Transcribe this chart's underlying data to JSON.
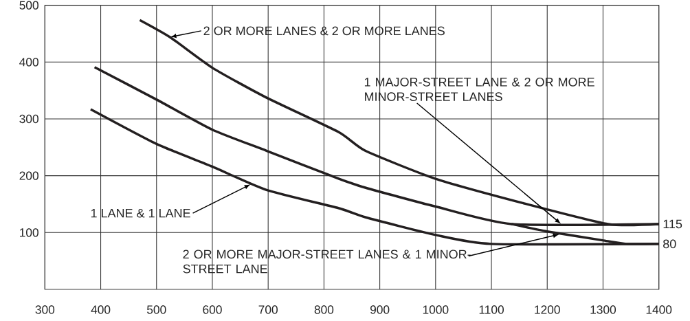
{
  "chart_data": {
    "type": "line",
    "xlim": [
      300,
      1400
    ],
    "ylim": [
      0,
      500
    ],
    "xticks": [
      300,
      400,
      500,
      600,
      700,
      800,
      900,
      1000,
      1100,
      1200,
      1300,
      1400
    ],
    "yticks": [
      100,
      200,
      300,
      400,
      500
    ],
    "grid": true,
    "marker": "none",
    "line_style": "solid",
    "series": [
      {
        "color": "#231f20",
        "x": [
          470,
          524,
          600,
          696,
          826,
          874,
          999,
          1156,
          1309,
          1400
        ],
        "values": [
          474,
          444,
          390,
          338,
          277,
          244,
          195,
          152,
          115,
          115
        ]
      },
      {
        "color": "#231f20",
        "x": [
          389,
          500,
          600,
          697,
          826,
          874,
          999,
          1136,
          1400
        ],
        "values": [
          391,
          334,
          281,
          244,
          195,
          179,
          146,
          115,
          115
        ]
      },
      {
        "color": "#231f20",
        "x": [
          1136,
          1200,
          1301,
          1342,
          1400
        ],
        "values": [
          115,
          102,
          86,
          80,
          80
        ]
      },
      {
        "color": "#231f20",
        "x": [
          382,
          500,
          600,
          697,
          826,
          874,
          999,
          1100,
          1400
        ],
        "values": [
          317,
          256,
          216,
          175,
          143,
          127,
          96,
          80,
          80
        ]
      }
    ],
    "annotations": [
      {
        "text": "2 OR MORE LANES & 2 OR MORE LANES",
        "x": 524,
        "y": 444
      },
      {
        "text": "1 LANE & 1 LANE",
        "x": 669,
        "y": 185
      },
      {
        "text": "1 MAJOR-STREET LANE & 2 OR MORE MINOR-STREET LANES",
        "x": 1225,
        "y": 115
      },
      {
        "text": "2 OR MORE MAJOR-STREET LANES & 1 MINOR-STREET LANE",
        "x": 1222,
        "y": 97
      },
      {
        "text": "115",
        "x": 1400,
        "y": 115
      },
      {
        "text": "80",
        "x": 1400,
        "y": 80
      }
    ]
  }
}
